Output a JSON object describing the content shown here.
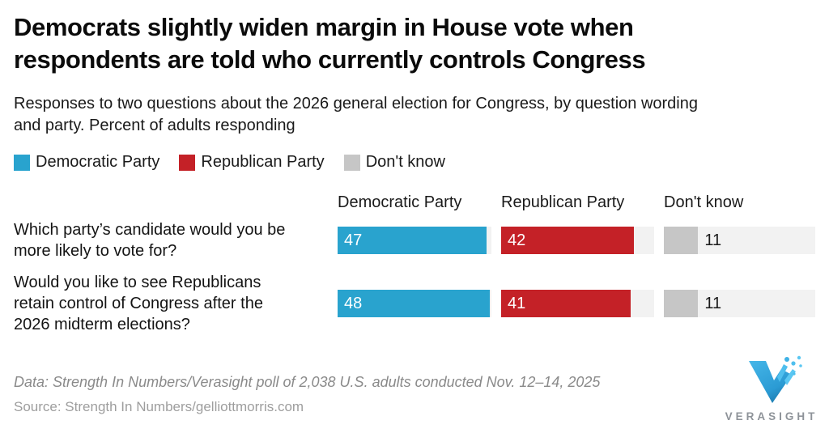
{
  "header": {
    "title_lines": [
      "Democrats slightly widen margin in House vote when",
      "respondents are told who currently controls Congress"
    ],
    "subtitle_lines": [
      "Responses to two questions about the 2026 general election for Congress, by question wording",
      "and party. Percent of adults responding"
    ]
  },
  "legend": {
    "items": [
      {
        "label": "Democratic Party",
        "color": "#29A3CE"
      },
      {
        "label": "Republican Party",
        "color": "#C42127"
      },
      {
        "label": "Don't know",
        "color": "#C6C6C6"
      }
    ]
  },
  "table": {
    "column_headers": [
      "Democratic Party",
      "Republican Party",
      "Don't know"
    ],
    "row_questions": [
      {
        "lines": [
          "Which party’s candidate would you be",
          "more likely to vote for?"
        ]
      },
      {
        "lines": [
          "Would you like to see Republicans",
          "retain control of Congress after the",
          "2026 midterm elections?"
        ]
      }
    ]
  },
  "chart_data": {
    "type": "bar",
    "orientation": "horizontal",
    "title": "Democrats slightly widen margin in House vote when respondents are told who currently controls Congress",
    "subtitle": "Responses to two questions about the 2026 general election for Congress, by question wording and party. Percent of adults responding",
    "categories": [
      "Which party’s candidate would you be more likely to vote for?",
      "Would you like to see Republicans retain control of Congress after the 2026 midterm elections?"
    ],
    "series": [
      {
        "name": "Democratic Party",
        "color": "#29A3CE",
        "values": [
          47,
          48
        ]
      },
      {
        "name": "Republican Party",
        "color": "#C42127",
        "values": [
          42,
          41
        ]
      },
      {
        "name": "Don't know",
        "color": "#C6C6C6",
        "values": [
          11,
          11
        ]
      }
    ],
    "xmax": 48.5,
    "value_labels": true,
    "legend_position": "top",
    "grid": false,
    "track_color": "#F2F2F2",
    "label_color_on_bar": "#FFFFFF",
    "label_color_off_bar": "#1A1A1A"
  },
  "footer": {
    "data_note": "Data: Strength In Numbers/Verasight poll of 2,038 U.S. adults conducted Nov. 12–14, 2025",
    "source_note": "Source: Strength In Numbers/gelliottmorris.com"
  },
  "logo": {
    "wordmark": "VERASIGHT",
    "brand_color": "#35A9DF"
  }
}
